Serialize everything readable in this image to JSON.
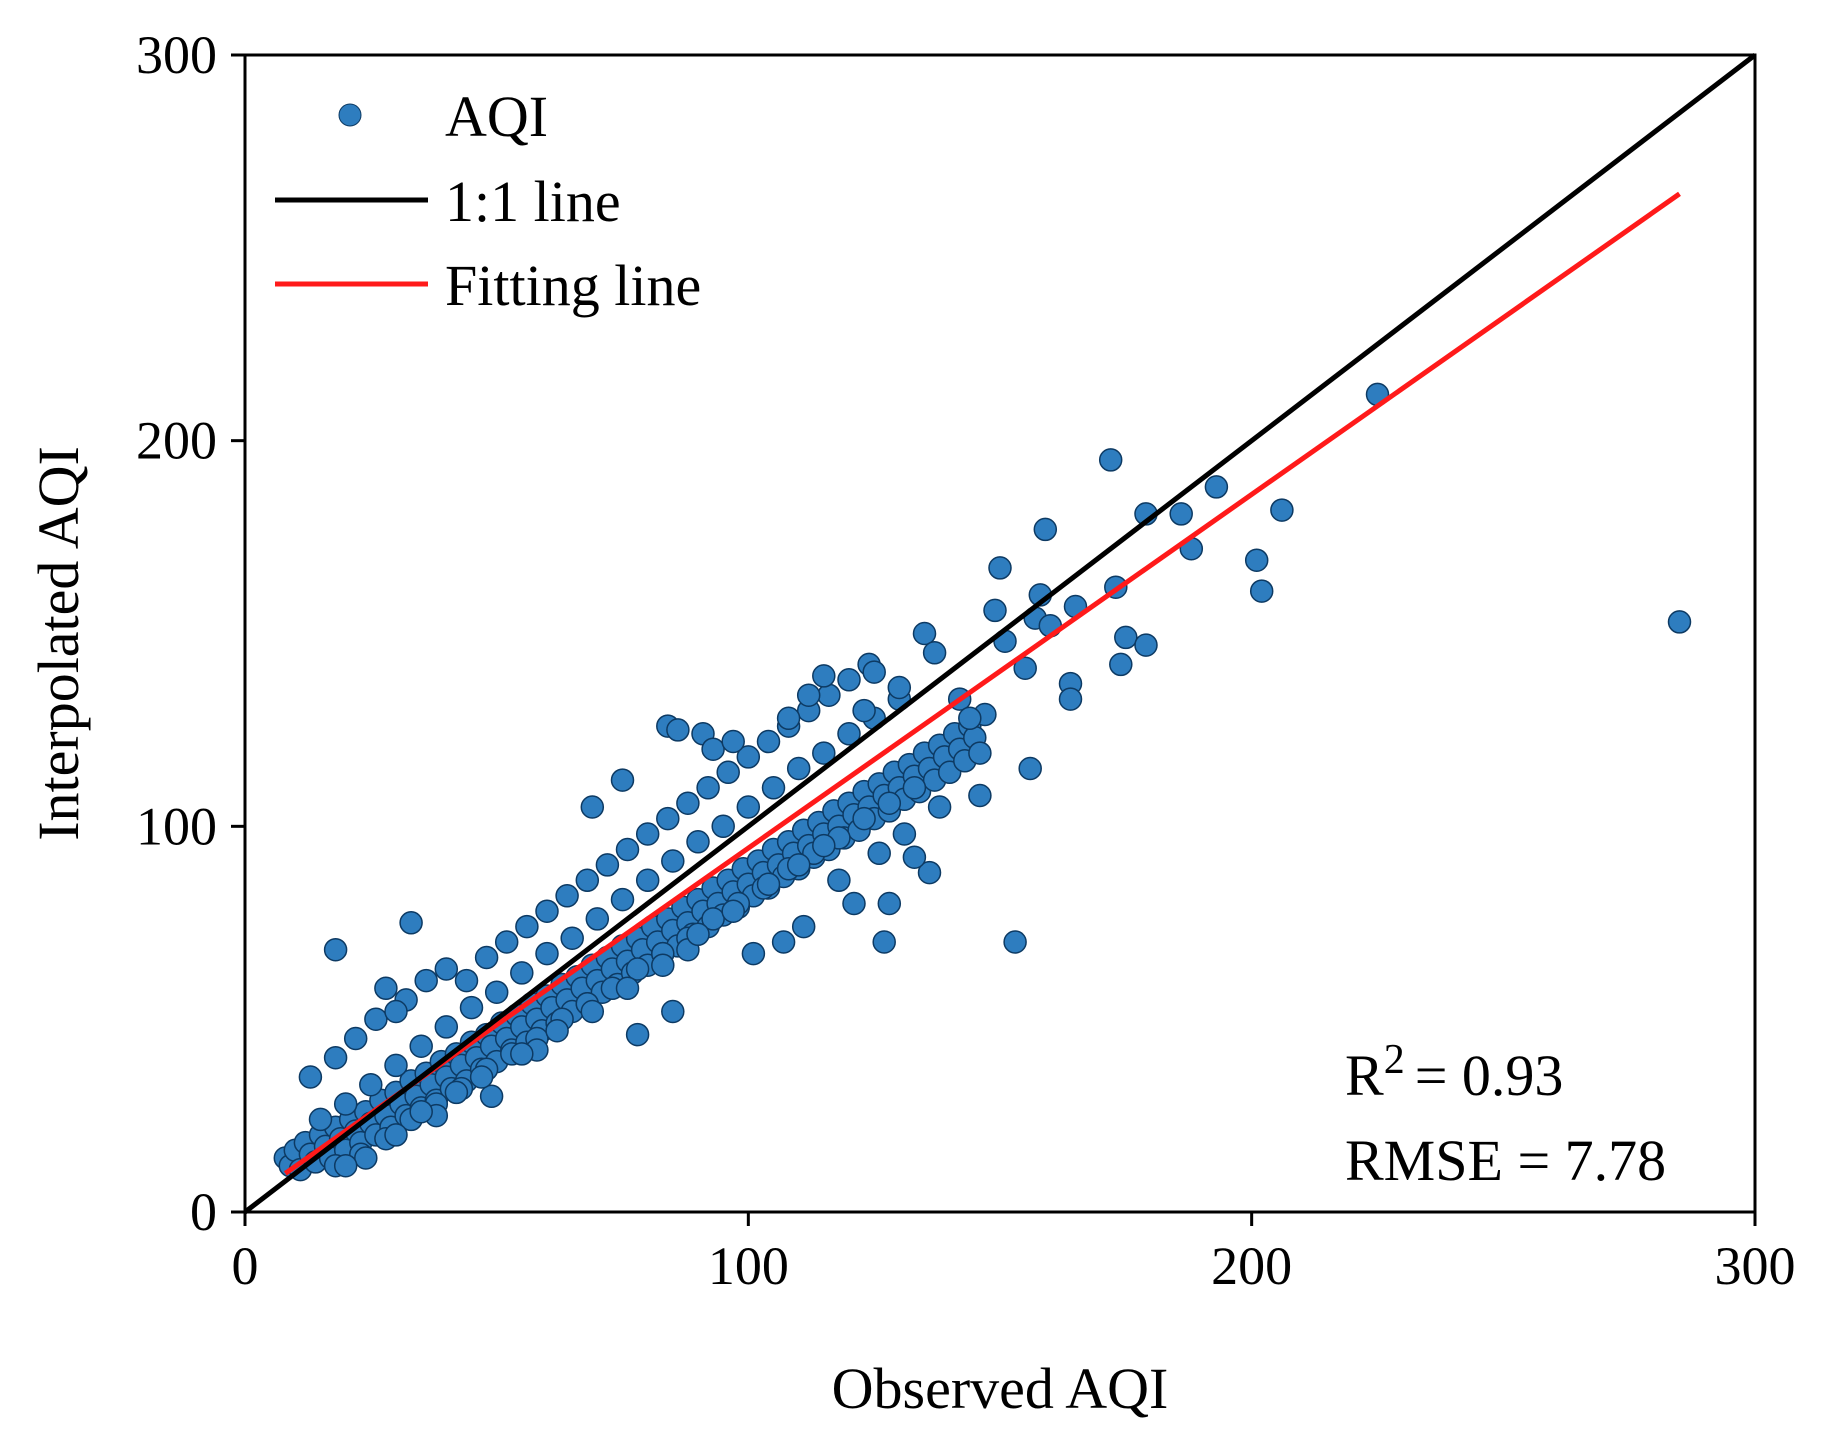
{
  "chart_data": {
    "type": "scatter",
    "title": "",
    "xlabel": "Observed AQI",
    "ylabel": "Interpolated AQI",
    "xlim": [
      0,
      300
    ],
    "ylim": [
      0,
      300
    ],
    "xticks": [
      "0",
      "100",
      "200",
      "300"
    ],
    "yticks": [
      "0",
      "100",
      "200",
      "300"
    ],
    "grid": false,
    "legend_position": "top-left",
    "legend": [
      {
        "label": "AQI",
        "kind": "marker"
      },
      {
        "label": "1:1 line",
        "kind": "line"
      },
      {
        "label": "Fitting line",
        "kind": "line"
      }
    ],
    "colors": {
      "points": "#2e7dbf",
      "point_edge": "#0d3a63",
      "one_to_one": "#000000",
      "fit": "#ff1a1a"
    },
    "lines": {
      "one_to_one": [
        [
          0,
          0
        ],
        [
          300,
          300
        ]
      ],
      "fit": [
        [
          8,
          10
        ],
        [
          285,
          264
        ]
      ]
    },
    "stats": {
      "r2_label": "R",
      "r2_sup": "2",
      "r2_value": "= 0.93",
      "rmse": "RMSE = 7.78"
    },
    "points": [
      [
        8,
        14
      ],
      [
        9,
        12
      ],
      [
        10,
        16
      ],
      [
        11,
        11
      ],
      [
        12,
        18
      ],
      [
        13,
        15
      ],
      [
        14,
        13
      ],
      [
        15,
        20
      ],
      [
        16,
        17
      ],
      [
        17,
        14
      ],
      [
        18,
        22
      ],
      [
        19,
        19
      ],
      [
        20,
        16
      ],
      [
        21,
        24
      ],
      [
        22,
        21
      ],
      [
        23,
        18
      ],
      [
        24,
        26
      ],
      [
        25,
        23
      ],
      [
        26,
        20
      ],
      [
        27,
        29
      ],
      [
        28,
        25
      ],
      [
        29,
        22
      ],
      [
        30,
        31
      ],
      [
        31,
        28
      ],
      [
        32,
        25
      ],
      [
        33,
        34
      ],
      [
        34,
        30
      ],
      [
        35,
        27
      ],
      [
        36,
        36
      ],
      [
        37,
        33
      ],
      [
        38,
        29
      ],
      [
        39,
        39
      ],
      [
        40,
        35
      ],
      [
        41,
        32
      ],
      [
        42,
        41
      ],
      [
        43,
        38
      ],
      [
        44,
        34
      ],
      [
        45,
        44
      ],
      [
        46,
        40
      ],
      [
        47,
        37
      ],
      [
        48,
        46
      ],
      [
        49,
        43
      ],
      [
        50,
        39
      ],
      [
        51,
        49
      ],
      [
        52,
        45
      ],
      [
        53,
        42
      ],
      [
        54,
        51
      ],
      [
        55,
        48
      ],
      [
        56,
        44
      ],
      [
        57,
        54
      ],
      [
        58,
        50
      ],
      [
        59,
        47
      ],
      [
        60,
        56
      ],
      [
        61,
        53
      ],
      [
        62,
        49
      ],
      [
        63,
        59
      ],
      [
        64,
        55
      ],
      [
        65,
        52
      ],
      [
        66,
        61
      ],
      [
        67,
        58
      ],
      [
        68,
        54
      ],
      [
        69,
        64
      ],
      [
        70,
        60
      ],
      [
        71,
        57
      ],
      [
        72,
        66
      ],
      [
        73,
        63
      ],
      [
        74,
        59
      ],
      [
        75,
        69
      ],
      [
        76,
        65
      ],
      [
        77,
        62
      ],
      [
        78,
        71
      ],
      [
        79,
        68
      ],
      [
        80,
        64
      ],
      [
        81,
        74
      ],
      [
        82,
        70
      ],
      [
        83,
        67
      ],
      [
        84,
        76
      ],
      [
        85,
        73
      ],
      [
        86,
        69
      ],
      [
        87,
        79
      ],
      [
        88,
        75
      ],
      [
        89,
        72
      ],
      [
        90,
        81
      ],
      [
        91,
        78
      ],
      [
        92,
        74
      ],
      [
        93,
        84
      ],
      [
        94,
        80
      ],
      [
        95,
        77
      ],
      [
        96,
        86
      ],
      [
        97,
        83
      ],
      [
        98,
        79
      ],
      [
        99,
        89
      ],
      [
        100,
        85
      ],
      [
        101,
        82
      ],
      [
        102,
        91
      ],
      [
        103,
        88
      ],
      [
        104,
        84
      ],
      [
        105,
        94
      ],
      [
        106,
        90
      ],
      [
        107,
        87
      ],
      [
        108,
        96
      ],
      [
        109,
        93
      ],
      [
        110,
        89
      ],
      [
        111,
        99
      ],
      [
        112,
        95
      ],
      [
        113,
        92
      ],
      [
        114,
        101
      ],
      [
        115,
        98
      ],
      [
        116,
        94
      ],
      [
        117,
        104
      ],
      [
        118,
        100
      ],
      [
        119,
        97
      ],
      [
        120,
        106
      ],
      [
        121,
        103
      ],
      [
        122,
        99
      ],
      [
        123,
        109
      ],
      [
        124,
        105
      ],
      [
        125,
        102
      ],
      [
        126,
        111
      ],
      [
        127,
        108
      ],
      [
        128,
        104
      ],
      [
        129,
        114
      ],
      [
        130,
        110
      ],
      [
        131,
        107
      ],
      [
        132,
        116
      ],
      [
        133,
        113
      ],
      [
        134,
        109
      ],
      [
        135,
        119
      ],
      [
        136,
        115
      ],
      [
        137,
        112
      ],
      [
        138,
        121
      ],
      [
        139,
        118
      ],
      [
        140,
        114
      ],
      [
        141,
        124
      ],
      [
        142,
        120
      ],
      [
        143,
        117
      ],
      [
        144,
        126
      ],
      [
        145,
        123
      ],
      [
        146,
        119
      ],
      [
        147,
        129
      ],
      [
        15,
        24
      ],
      [
        20,
        28
      ],
      [
        25,
        33
      ],
      [
        30,
        38
      ],
      [
        35,
        43
      ],
      [
        40,
        48
      ],
      [
        45,
        53
      ],
      [
        50,
        57
      ],
      [
        55,
        62
      ],
      [
        60,
        67
      ],
      [
        65,
        71
      ],
      [
        70,
        76
      ],
      [
        75,
        81
      ],
      [
        80,
        86
      ],
      [
        85,
        91
      ],
      [
        90,
        96
      ],
      [
        95,
        100
      ],
      [
        100,
        105
      ],
      [
        105,
        110
      ],
      [
        110,
        115
      ],
      [
        115,
        119
      ],
      [
        120,
        124
      ],
      [
        125,
        128
      ],
      [
        130,
        133
      ],
      [
        18,
        12
      ],
      [
        23,
        15
      ],
      [
        28,
        19
      ],
      [
        33,
        24
      ],
      [
        38,
        28
      ],
      [
        43,
        32
      ],
      [
        48,
        37
      ],
      [
        53,
        41
      ],
      [
        58,
        45
      ],
      [
        63,
        50
      ],
      [
        68,
        54
      ],
      [
        73,
        58
      ],
      [
        78,
        63
      ],
      [
        83,
        67
      ],
      [
        88,
        71
      ],
      [
        93,
        76
      ],
      [
        98,
        80
      ],
      [
        103,
        84
      ],
      [
        108,
        89
      ],
      [
        113,
        93
      ],
      [
        118,
        97
      ],
      [
        123,
        102
      ],
      [
        128,
        106
      ],
      [
        133,
        110
      ],
      [
        28,
        58
      ],
      [
        32,
        55
      ],
      [
        36,
        60
      ],
      [
        40,
        63
      ],
      [
        44,
        60
      ],
      [
        48,
        66
      ],
      [
        52,
        70
      ],
      [
        56,
        74
      ],
      [
        60,
        78
      ],
      [
        64,
        82
      ],
      [
        68,
        86
      ],
      [
        72,
        90
      ],
      [
        76,
        94
      ],
      [
        80,
        98
      ],
      [
        84,
        102
      ],
      [
        88,
        106
      ],
      [
        92,
        110
      ],
      [
        96,
        114
      ],
      [
        100,
        118
      ],
      [
        104,
        122
      ],
      [
        108,
        126
      ],
      [
        112,
        130
      ],
      [
        116,
        134
      ],
      [
        120,
        138
      ],
      [
        124,
        142
      ],
      [
        18,
        68
      ],
      [
        33,
        75
      ],
      [
        13,
        35
      ],
      [
        18,
        40
      ],
      [
        22,
        45
      ],
      [
        26,
        50
      ],
      [
        30,
        52
      ],
      [
        69,
        105
      ],
      [
        75,
        112
      ],
      [
        84,
        126
      ],
      [
        86,
        125
      ],
      [
        91,
        124
      ],
      [
        93,
        120
      ],
      [
        97,
        122
      ],
      [
        108,
        128
      ],
      [
        112,
        134
      ],
      [
        115,
        139
      ],
      [
        123,
        130
      ],
      [
        125,
        140
      ],
      [
        130,
        136
      ],
      [
        135,
        150
      ],
      [
        137,
        145
      ],
      [
        142,
        133
      ],
      [
        144,
        128
      ],
      [
        149,
        156
      ],
      [
        150,
        167
      ],
      [
        151,
        148
      ],
      [
        155,
        141
      ],
      [
        156,
        115
      ],
      [
        157,
        154
      ],
      [
        158,
        160
      ],
      [
        159,
        177
      ],
      [
        160,
        152
      ],
      [
        164,
        137
      ],
      [
        164,
        133
      ],
      [
        165,
        157
      ],
      [
        172,
        195
      ],
      [
        173,
        162
      ],
      [
        174,
        142
      ],
      [
        175,
        149
      ],
      [
        179,
        181
      ],
      [
        179,
        147
      ],
      [
        186,
        181
      ],
      [
        188,
        172
      ],
      [
        193,
        188
      ],
      [
        201,
        169
      ],
      [
        202,
        161
      ],
      [
        206,
        182
      ],
      [
        225,
        212
      ],
      [
        285,
        153
      ],
      [
        153,
        70
      ],
      [
        127,
        70
      ],
      [
        121,
        80
      ],
      [
        128,
        80
      ],
      [
        111,
        74
      ],
      [
        107,
        70
      ],
      [
        101,
        67
      ],
      [
        88,
        68
      ],
      [
        85,
        52
      ],
      [
        78,
        46
      ],
      [
        58,
        42
      ],
      [
        49,
        30
      ],
      [
        38,
        25
      ],
      [
        30,
        20
      ],
      [
        24,
        14
      ],
      [
        20,
        12
      ],
      [
        136,
        88
      ],
      [
        133,
        92
      ],
      [
        126,
        93
      ],
      [
        118,
        86
      ],
      [
        146,
        108
      ],
      [
        138,
        105
      ],
      [
        131,
        98
      ],
      [
        115,
        95
      ],
      [
        110,
        90
      ],
      [
        104,
        85
      ],
      [
        97,
        78
      ],
      [
        90,
        72
      ],
      [
        83,
        64
      ],
      [
        76,
        58
      ],
      [
        69,
        52
      ],
      [
        62,
        47
      ],
      [
        55,
        41
      ],
      [
        47,
        35
      ],
      [
        42,
        31
      ],
      [
        35,
        26
      ]
    ]
  }
}
